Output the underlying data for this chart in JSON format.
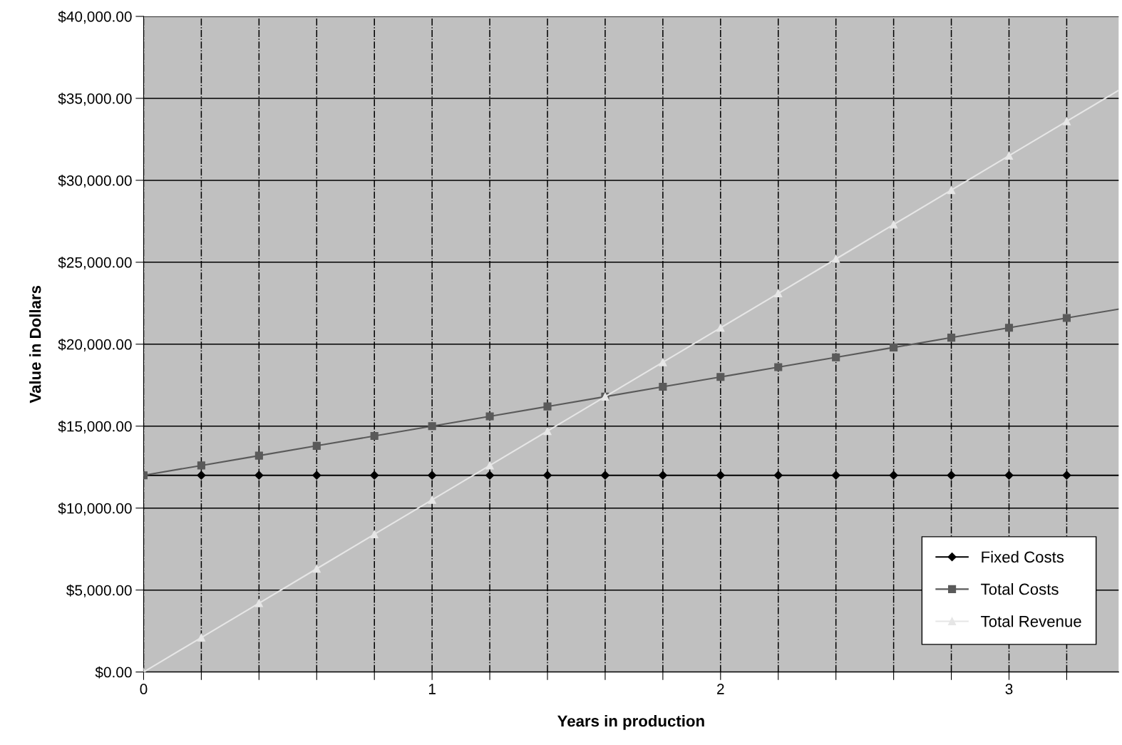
{
  "chart_data": {
    "type": "line",
    "xlabel": "Years in production",
    "ylabel": "Value in Dollars",
    "x": [
      0,
      0.2,
      0.4,
      0.6,
      0.8,
      1,
      1.2,
      1.4,
      1.6,
      1.8,
      2,
      2.2,
      2.4,
      2.6,
      2.8,
      3,
      3.2,
      3.38
    ],
    "series": [
      {
        "name": "Fixed Costs",
        "color": "#000000",
        "marker": "diamond",
        "values": [
          12000,
          12000,
          12000,
          12000,
          12000,
          12000,
          12000,
          12000,
          12000,
          12000,
          12000,
          12000,
          12000,
          12000,
          12000,
          12000,
          12000,
          12000
        ]
      },
      {
        "name": "Total Costs",
        "color": "#5a5a5a",
        "marker": "square",
        "values": [
          12000,
          12600,
          13200,
          13800,
          14400,
          15000,
          15600,
          16200,
          16800,
          17400,
          18000,
          18600,
          19200,
          19800,
          20400,
          21000,
          21600,
          22140
        ]
      },
      {
        "name": "Total Revenue",
        "color": "#e6e6e6",
        "marker": "triangle",
        "values": [
          0,
          2100,
          4200,
          6300,
          8400,
          10500,
          12600,
          14700,
          16800,
          18900,
          21000,
          23100,
          25200,
          27300,
          29400,
          31500,
          33600,
          35490
        ]
      }
    ],
    "xlim": [
      0,
      3.38
    ],
    "xticks": [
      0,
      {
        "value": 0.2,
        "label": null
      },
      {
        "value": 0.4,
        "label": null
      },
      {
        "value": 0.6,
        "label": null
      },
      {
        "value": 0.8,
        "label": null
      },
      1,
      {
        "value": 1.2,
        "label": null
      },
      {
        "value": 1.4,
        "label": null
      },
      {
        "value": 1.6,
        "label": null
      },
      {
        "value": 1.8,
        "label": null
      },
      2,
      {
        "value": 2.2,
        "label": null
      },
      {
        "value": 2.4,
        "label": null
      },
      {
        "value": 2.6,
        "label": null
      },
      {
        "value": 2.8,
        "label": null
      },
      3,
      {
        "value": 3.2,
        "label": null
      }
    ],
    "ylim": [
      0,
      40000
    ],
    "yticks": [
      {
        "value": 0,
        "label": "$0.00"
      },
      {
        "value": 5000,
        "label": "$5,000.00"
      },
      {
        "value": 10000,
        "label": "$10,000.00"
      },
      {
        "value": 15000,
        "label": "$15,000.00"
      },
      {
        "value": 20000,
        "label": "$20,000.00"
      },
      {
        "value": 25000,
        "label": "$25,000.00"
      },
      {
        "value": 30000,
        "label": "$30,000.00"
      },
      {
        "value": 35000,
        "label": "$35,000.00"
      },
      {
        "value": 40000,
        "label": "$40,000.00"
      }
    ],
    "grid": true,
    "legend": "bottom right"
  }
}
